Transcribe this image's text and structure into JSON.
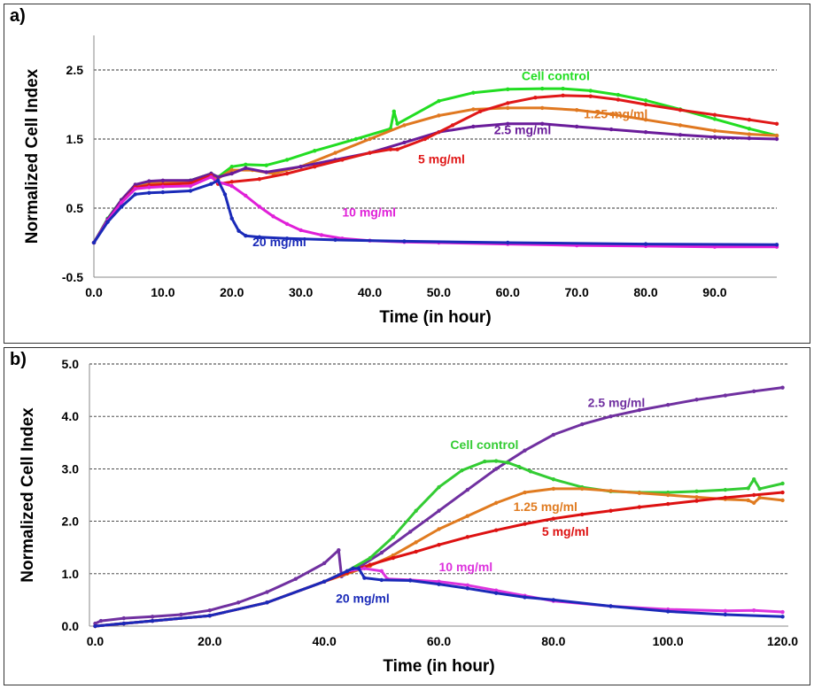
{
  "chart_data": [
    {
      "panel": "a)",
      "type": "line",
      "xlabel": "Time (in hour)",
      "ylabel": "Normalized Cell Index",
      "xlim": [
        0,
        99
      ],
      "ylim": [
        -0.5,
        3.0
      ],
      "xticks": [
        "0.0",
        "10.0",
        "20.0",
        "30.0",
        "40.0",
        "50.0",
        "60.0",
        "70.0",
        "80.0",
        "90.0"
      ],
      "xtick_values": [
        0,
        10,
        20,
        30,
        40,
        50,
        60,
        70,
        80,
        90
      ],
      "yticks": [
        "-0.5",
        "0.5",
        "1.5",
        "2.5"
      ],
      "ytick_values": [
        -0.5,
        0.5,
        1.5,
        2.5
      ],
      "gridlines": [
        0.5,
        1.5,
        2.5
      ],
      "series": [
        {
          "name": "Cell control",
          "color": "#22dd22",
          "x": [
            0,
            2,
            4,
            6,
            8,
            10,
            14,
            17,
            18,
            20,
            22,
            25,
            28,
            32,
            38,
            43,
            43.5,
            44,
            50,
            55,
            60,
            65,
            68,
            72,
            76,
            80,
            85,
            90,
            95,
            99
          ],
          "y": [
            0,
            0.35,
            0.62,
            0.82,
            0.88,
            0.89,
            0.9,
            1.0,
            0.95,
            1.1,
            1.13,
            1.12,
            1.2,
            1.33,
            1.5,
            1.65,
            1.9,
            1.72,
            2.05,
            2.17,
            2.22,
            2.23,
            2.23,
            2.2,
            2.14,
            2.06,
            1.93,
            1.79,
            1.65,
            1.55
          ],
          "label_x": 62,
          "label_y": 2.35
        },
        {
          "name": "1.25 mg/ml",
          "color": "#e07820",
          "x": [
            0,
            2,
            4,
            6,
            8,
            10,
            14,
            17,
            18,
            20,
            23,
            26,
            30,
            35,
            40,
            45,
            50,
            55,
            60,
            65,
            70,
            75,
            80,
            85,
            90,
            95,
            99
          ],
          "y": [
            0,
            0.33,
            0.6,
            0.8,
            0.85,
            0.87,
            0.88,
            0.98,
            0.93,
            1.05,
            1.05,
            1.0,
            1.1,
            1.3,
            1.5,
            1.7,
            1.84,
            1.93,
            1.95,
            1.95,
            1.92,
            1.86,
            1.78,
            1.7,
            1.62,
            1.57,
            1.55
          ],
          "label_x": 71,
          "label_y": 1.8
        },
        {
          "name": "2.5 mg/ml",
          "color": "#6a1c9a",
          "x": [
            0,
            2,
            4,
            6,
            8,
            10,
            14,
            17,
            18,
            20,
            22,
            25,
            30,
            35,
            40,
            45,
            50,
            55,
            60,
            65,
            70,
            75,
            80,
            85,
            90,
            95,
            99
          ],
          "y": [
            0,
            0.34,
            0.62,
            0.84,
            0.89,
            0.9,
            0.9,
            1.0,
            0.95,
            1.0,
            1.08,
            1.02,
            1.1,
            1.2,
            1.3,
            1.45,
            1.6,
            1.68,
            1.72,
            1.72,
            1.68,
            1.64,
            1.6,
            1.56,
            1.53,
            1.51,
            1.5
          ],
          "label_x": 58,
          "label_y": 1.57
        },
        {
          "name": "5 mg/ml",
          "color": "#e01818",
          "x": [
            0,
            2,
            4,
            6,
            8,
            10,
            14,
            17,
            18,
            20,
            24,
            28,
            32,
            36,
            40,
            43,
            44,
            48,
            52,
            56,
            60,
            64,
            68,
            72,
            76,
            80,
            85,
            90,
            95,
            99
          ],
          "y": [
            0,
            0.32,
            0.58,
            0.8,
            0.83,
            0.84,
            0.86,
            0.97,
            0.85,
            0.88,
            0.92,
            1.0,
            1.1,
            1.2,
            1.3,
            1.35,
            1.35,
            1.5,
            1.7,
            1.9,
            2.02,
            2.1,
            2.13,
            2.12,
            2.07,
            2.0,
            1.92,
            1.85,
            1.78,
            1.72
          ],
          "label_x": 47,
          "label_y": 1.15
        },
        {
          "name": "10 mg/ml",
          "color": "#e020d8",
          "x": [
            0,
            2,
            4,
            6,
            8,
            10,
            14,
            17,
            18,
            20,
            22,
            24,
            26,
            28,
            30,
            33,
            36,
            40,
            45,
            50,
            60,
            70,
            80,
            90,
            99
          ],
          "y": [
            0,
            0.32,
            0.58,
            0.78,
            0.8,
            0.81,
            0.82,
            0.95,
            0.88,
            0.82,
            0.68,
            0.52,
            0.38,
            0.27,
            0.18,
            0.11,
            0.06,
            0.03,
            0.01,
            0.0,
            -0.02,
            -0.04,
            -0.05,
            -0.06,
            -0.06
          ],
          "label_x": 36,
          "label_y": 0.38
        },
        {
          "name": "20 mg/ml",
          "color": "#1a2ab8",
          "x": [
            0,
            2,
            4,
            6,
            8,
            10,
            14,
            17,
            18,
            19,
            20,
            21,
            22,
            24,
            28,
            35,
            45,
            60,
            80,
            99
          ],
          "y": [
            0,
            0.3,
            0.52,
            0.7,
            0.72,
            0.73,
            0.75,
            0.85,
            0.9,
            0.7,
            0.35,
            0.17,
            0.1,
            0.08,
            0.06,
            0.04,
            0.02,
            0.0,
            -0.02,
            -0.03
          ],
          "label_x": 23,
          "label_y": -0.05
        }
      ]
    },
    {
      "panel": "b)",
      "type": "line",
      "xlabel": "Time (in hour)",
      "ylabel": "Normalized Cell Index",
      "xlim": [
        -1,
        121
      ],
      "ylim": [
        0,
        5.0
      ],
      "xticks": [
        "0.0",
        "20.0",
        "40.0",
        "60.0",
        "80.0",
        "100.0",
        "120.0"
      ],
      "xtick_values": [
        0,
        20,
        40,
        60,
        80,
        100,
        120
      ],
      "yticks": [
        "0.0",
        "1.0",
        "2.0",
        "3.0",
        "4.0",
        "5.0"
      ],
      "ytick_values": [
        0,
        1,
        2,
        3,
        4,
        5
      ],
      "gridlines": [
        1,
        2,
        3,
        4,
        5
      ],
      "series": [
        {
          "name": "2.5 mg/ml",
          "color": "#7030a0",
          "x": [
            0,
            1,
            5,
            10,
            15,
            20,
            25,
            30,
            35,
            40,
            42.5,
            43,
            45,
            50,
            55,
            60,
            65,
            70,
            75,
            80,
            85,
            90,
            95,
            100,
            105,
            110,
            115,
            120
          ],
          "y": [
            0.05,
            0.1,
            0.15,
            0.18,
            0.22,
            0.3,
            0.45,
            0.65,
            0.9,
            1.2,
            1.45,
            0.95,
            1.05,
            1.4,
            1.8,
            2.2,
            2.6,
            3.0,
            3.35,
            3.65,
            3.85,
            4.0,
            4.12,
            4.22,
            4.32,
            4.4,
            4.48,
            4.55
          ],
          "label_x": 86,
          "label_y": 4.18
        },
        {
          "name": "Cell control",
          "color": "#33cc33",
          "x": [
            0,
            5,
            10,
            20,
            30,
            40,
            44,
            48,
            52,
            56,
            60,
            64,
            68,
            70,
            72,
            74,
            76,
            80,
            85,
            90,
            95,
            100,
            105,
            110,
            114,
            115,
            116,
            120
          ],
          "y": [
            0,
            0.05,
            0.1,
            0.2,
            0.45,
            0.85,
            1.05,
            1.3,
            1.7,
            2.2,
            2.65,
            2.97,
            3.14,
            3.15,
            3.12,
            3.04,
            2.95,
            2.8,
            2.65,
            2.57,
            2.55,
            2.55,
            2.57,
            2.6,
            2.63,
            2.8,
            2.62,
            2.72
          ],
          "label_x": 62,
          "label_y": 3.38
        },
        {
          "name": "1.25 mg/ml",
          "color": "#e07b20",
          "x": [
            0,
            5,
            10,
            20,
            30,
            40,
            44,
            48,
            52,
            56,
            60,
            65,
            70,
            75,
            80,
            85,
            90,
            95,
            100,
            105,
            110,
            114,
            115,
            116,
            120
          ],
          "y": [
            0,
            0.05,
            0.1,
            0.2,
            0.45,
            0.85,
            1.0,
            1.15,
            1.35,
            1.6,
            1.85,
            2.1,
            2.35,
            2.55,
            2.62,
            2.62,
            2.58,
            2.54,
            2.5,
            2.46,
            2.42,
            2.4,
            2.35,
            2.45,
            2.4
          ],
          "label_x": 73,
          "label_y": 2.2
        },
        {
          "name": "5 mg/ml",
          "color": "#dd1111",
          "x": [
            0,
            5,
            10,
            20,
            30,
            40,
            44,
            48,
            52,
            56,
            60,
            65,
            70,
            75,
            80,
            85,
            90,
            95,
            100,
            105,
            110,
            115,
            120
          ],
          "y": [
            0,
            0.05,
            0.1,
            0.2,
            0.45,
            0.85,
            1.02,
            1.17,
            1.3,
            1.42,
            1.55,
            1.7,
            1.83,
            1.95,
            2.05,
            2.13,
            2.2,
            2.27,
            2.33,
            2.39,
            2.45,
            2.5,
            2.55
          ],
          "label_x": 78,
          "label_y": 1.72
        },
        {
          "name": "10 mg/ml",
          "color": "#dd33dd",
          "x": [
            0,
            5,
            10,
            20,
            30,
            40,
            44,
            47,
            50,
            51,
            55,
            60,
            65,
            70,
            75,
            80,
            90,
            100,
            110,
            115,
            120
          ],
          "y": [
            0,
            0.05,
            0.1,
            0.2,
            0.45,
            0.85,
            1.05,
            1.1,
            1.05,
            0.9,
            0.88,
            0.85,
            0.78,
            0.68,
            0.58,
            0.48,
            0.38,
            0.32,
            0.29,
            0.3,
            0.27
          ],
          "label_x": 60,
          "label_y": 1.05
        },
        {
          "name": "20 mg/ml",
          "color": "#1a2ab8",
          "x": [
            0,
            5,
            10,
            20,
            30,
            40,
            44,
            45,
            46,
            47,
            50,
            55,
            60,
            65,
            70,
            75,
            80,
            90,
            100,
            110,
            120
          ],
          "y": [
            0,
            0.05,
            0.1,
            0.2,
            0.45,
            0.85,
            1.05,
            1.1,
            1.1,
            0.92,
            0.88,
            0.87,
            0.8,
            0.72,
            0.63,
            0.55,
            0.5,
            0.38,
            0.28,
            0.22,
            0.18
          ],
          "label_x": 42,
          "label_y": 0.45
        }
      ]
    }
  ]
}
